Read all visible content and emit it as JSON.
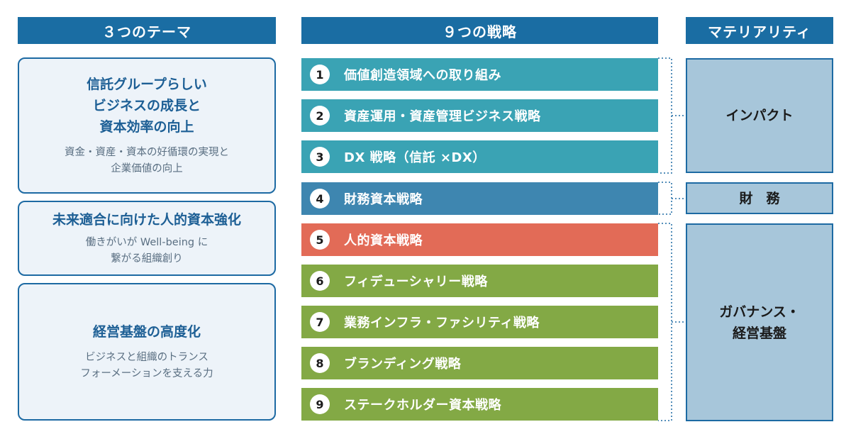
{
  "headers": {
    "themes": "３つのテーマ",
    "strategies": "９つの戦略",
    "materiality": "マテリアリティ"
  },
  "themes": [
    {
      "title": "信託グループらしい\nビジネスの成長と\n資本効率の向上",
      "description": "資金・資産・資本の好循環の実現と\n企業価値の向上"
    },
    {
      "title": "未来適合に向けた人的資本強化",
      "description": "働きがいが Well-being に\n繋がる組織創り"
    },
    {
      "title": "経営基盤の高度化",
      "description": "ビジネスと組織のトランス\nフォーメーションを支える力"
    }
  ],
  "strategies": [
    {
      "num": "1",
      "label": "価値創造領域への取り組み",
      "color": "#3aa3b4"
    },
    {
      "num": "2",
      "label": "資産運用・資産管理ビジネス戦略",
      "color": "#3aa3b4"
    },
    {
      "num": "3",
      "label": "DX 戦略（信託 ×DX）",
      "color": "#3aa3b4"
    },
    {
      "num": "4",
      "label": "財務資本戦略",
      "color": "#3e86b0"
    },
    {
      "num": "5",
      "label": "人的資本戦略",
      "color": "#e26b57"
    },
    {
      "num": "6",
      "label": "フィデューシャリー戦略",
      "color": "#83a945"
    },
    {
      "num": "7",
      "label": "業務インフラ・ファシリティ戦略",
      "color": "#83a945"
    },
    {
      "num": "8",
      "label": "ブランディング戦略",
      "color": "#83a945"
    },
    {
      "num": "9",
      "label": "ステークホルダー資本戦略",
      "color": "#83a945"
    }
  ],
  "materiality": [
    {
      "label": "インパクト"
    },
    {
      "label": "財　務"
    },
    {
      "label": "ガバナンス・\n経営基盤"
    }
  ],
  "colors": {
    "header_bg": "#1a6da3",
    "theme_border": "#1d6aa3",
    "theme_bg": "#edf3f9",
    "materiality_bg": "#a7c6da",
    "connector": "#1d6aa3"
  }
}
